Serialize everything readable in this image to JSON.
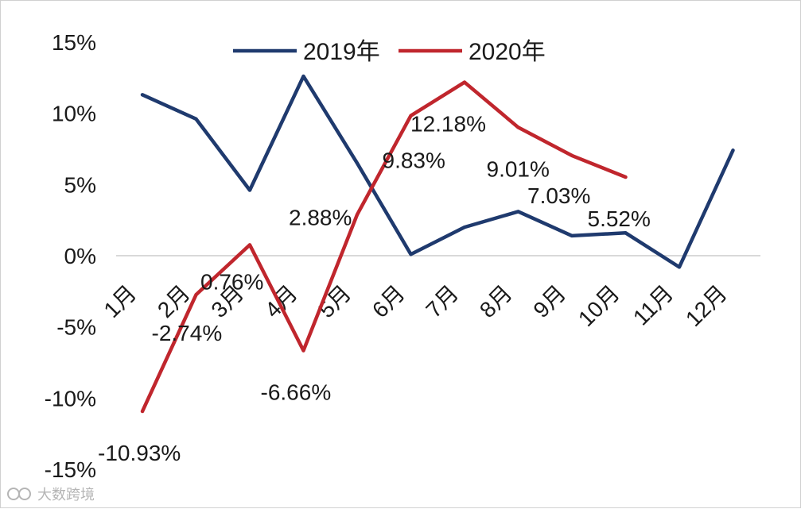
{
  "chart_data": {
    "type": "line",
    "categories": [
      "1月",
      "2月",
      "3月",
      "4月",
      "5月",
      "6月",
      "7月",
      "8月",
      "9月",
      "10月",
      "11月",
      "12月"
    ],
    "series": [
      {
        "name": "2019年",
        "color": "#1f3a6e",
        "values": [
          11.3,
          9.6,
          4.6,
          12.6,
          6.5,
          0.1,
          2.0,
          3.1,
          1.4,
          1.6,
          -0.8,
          7.4
        ]
      },
      {
        "name": "2020年",
        "color": "#c0262d",
        "values": [
          -10.93,
          -2.74,
          0.76,
          -6.66,
          2.88,
          9.83,
          12.18,
          9.01,
          7.03,
          5.52,
          null,
          null
        ],
        "data_labels": [
          "-10.93%",
          "-2.74%",
          "0.76%",
          "-6.66%",
          "2.88%",
          "9.83%",
          "12.18%",
          "9.01%",
          "7.03%",
          "5.52%"
        ]
      }
    ],
    "ylim": [
      -15,
      15
    ],
    "yticks": [
      15,
      10,
      5,
      0,
      -5,
      -10,
      -15
    ],
    "ytick_labels": [
      "15%",
      "10%",
      "5%",
      "0%",
      "-5%",
      "-10%",
      "-15%"
    ],
    "gridlines": false,
    "zero_line": true,
    "legend_position": "top-center"
  },
  "watermark": {
    "text": "大数跨境",
    "icon": "logo-mark-icon"
  }
}
